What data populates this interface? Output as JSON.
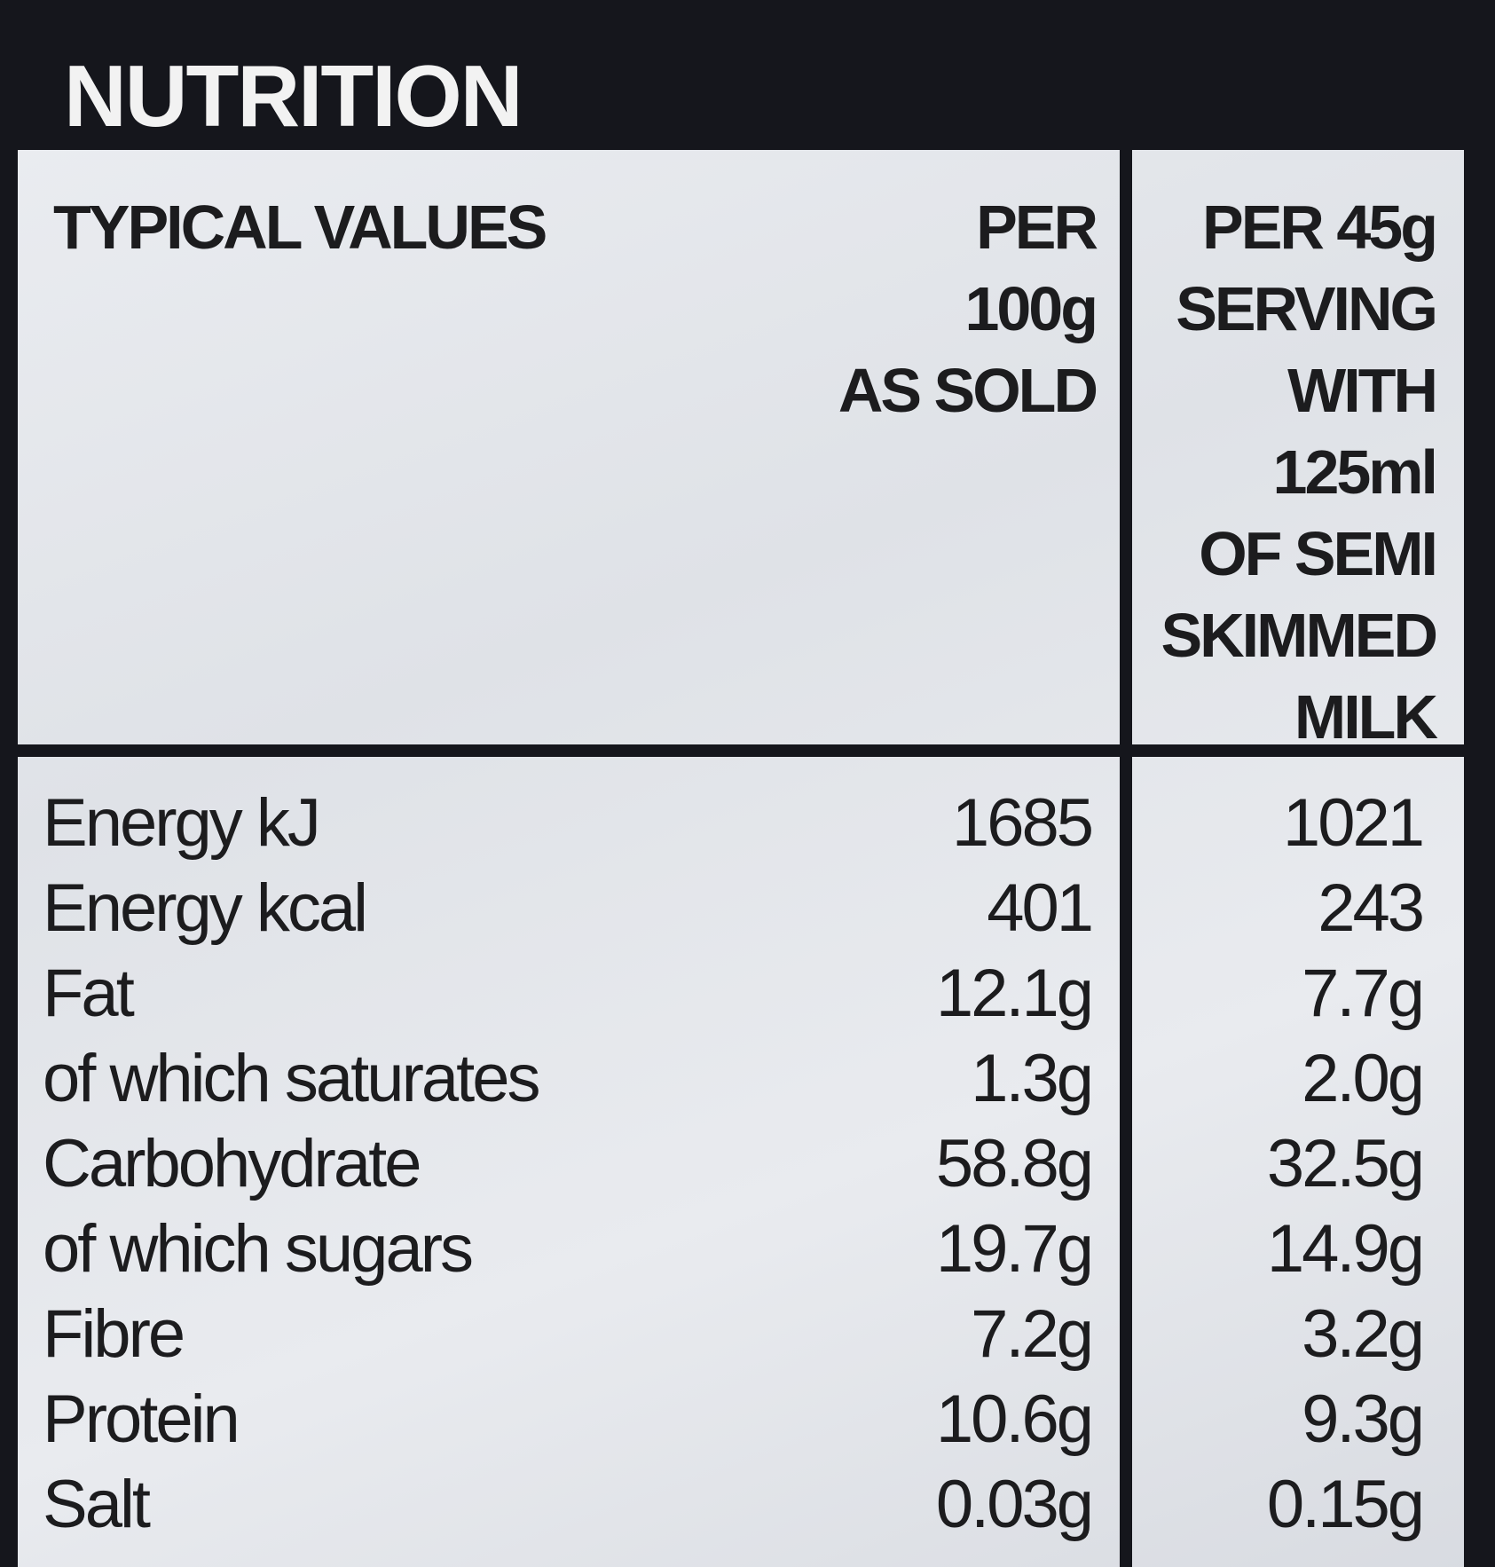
{
  "title": "NUTRITION",
  "header": {
    "label": "TYPICAL VALUES",
    "col1": [
      "PER",
      "100g",
      "AS SOLD"
    ],
    "col2": [
      "PER 45g",
      "SERVING",
      "WITH",
      "125ml",
      "OF SEMI",
      "SKIMMED",
      "MILK"
    ]
  },
  "rows": [
    [
      "Energy kJ",
      "1685",
      "1021"
    ],
    [
      "Energy kcal",
      "401",
      "243"
    ],
    [
      "Fat",
      "12.1g",
      "7.7g"
    ],
    [
      "of which saturates",
      "1.3g",
      "2.0g"
    ],
    [
      "Carbohydrate",
      "58.8g",
      "32.5g"
    ],
    [
      "of which sugars",
      "19.7g",
      "14.9g"
    ],
    [
      "Fibre",
      "7.2g",
      "3.2g"
    ],
    [
      "Protein",
      "10.6g",
      "9.3g"
    ],
    [
      "Salt",
      "0.03g",
      "0.15g"
    ]
  ]
}
